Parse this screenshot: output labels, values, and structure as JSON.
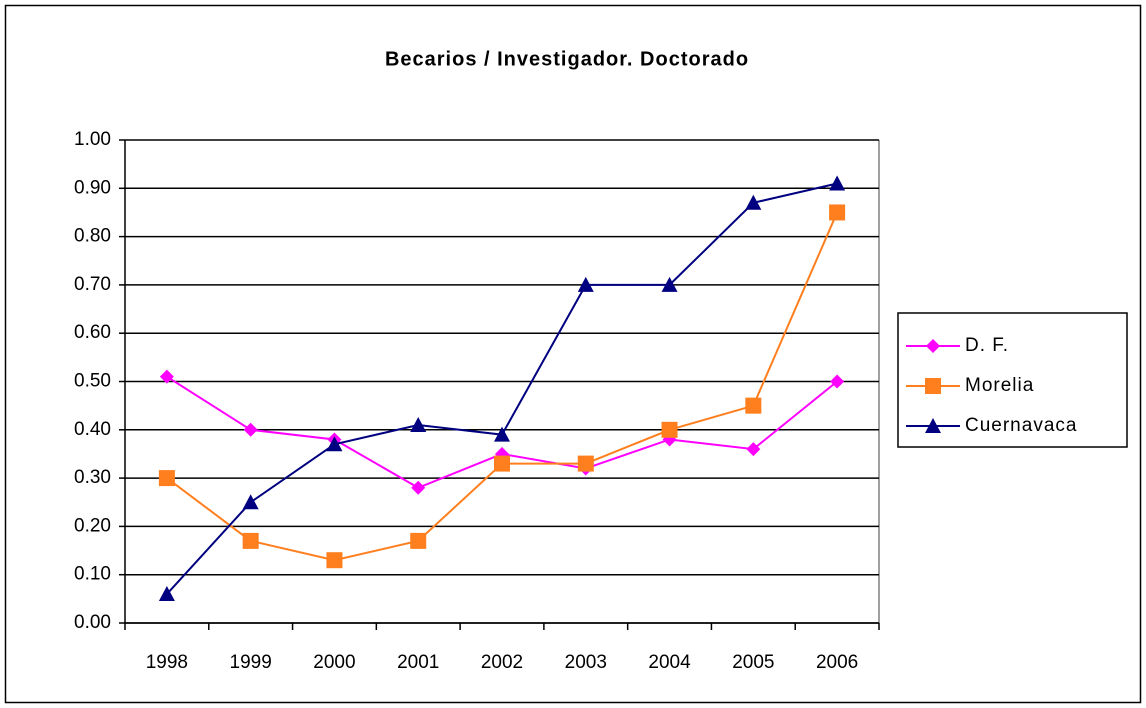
{
  "chart_data": {
    "type": "line",
    "title": "Becarios / Investigador. Doctorado",
    "categories": [
      "1998",
      "1999",
      "2000",
      "2001",
      "2002",
      "2003",
      "2004",
      "2005",
      "2006"
    ],
    "series": [
      {
        "name": "D. F.",
        "color": "#ff00ff",
        "marker": "diamond",
        "values": [
          0.51,
          0.4,
          0.38,
          0.28,
          0.35,
          0.32,
          0.38,
          0.36,
          0.5
        ]
      },
      {
        "name": "Morelia",
        "color": "#ff7f1e",
        "marker": "square",
        "values": [
          0.3,
          0.17,
          0.13,
          0.17,
          0.33,
          0.33,
          0.4,
          0.45,
          0.85
        ]
      },
      {
        "name": "Cuernavaca",
        "color": "#000080",
        "marker": "triangle",
        "values": [
          0.06,
          0.25,
          0.37,
          0.41,
          0.39,
          0.7,
          0.7,
          0.87,
          0.91
        ]
      }
    ],
    "ylim": [
      0,
      1
    ],
    "yticks": [
      {
        "value": 0,
        "label": "0.00"
      },
      {
        "value": 0.1,
        "label": "0.10"
      },
      {
        "value": 0.2,
        "label": "0.20"
      },
      {
        "value": 0.3,
        "label": "0.30"
      },
      {
        "value": 0.4,
        "label": "0.40"
      },
      {
        "value": 0.5,
        "label": "0.50"
      },
      {
        "value": 0.6,
        "label": "0.60"
      },
      {
        "value": 0.7,
        "label": "0.70"
      },
      {
        "value": 0.8,
        "label": "0.80"
      },
      {
        "value": 0.9,
        "label": "0.90"
      },
      {
        "value": 1,
        "label": "1.00"
      }
    ],
    "grid": true,
    "legend": "right"
  }
}
